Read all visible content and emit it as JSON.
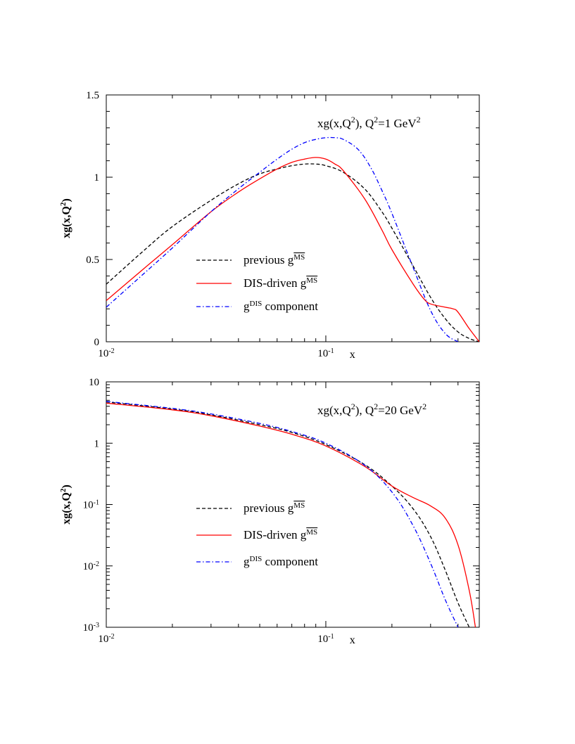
{
  "colors": {
    "previous": "#000000",
    "dis_driven": "#ff0000",
    "dis_component": "#0000ff"
  },
  "chart_data": [
    {
      "type": "line",
      "panel": "top",
      "xscale": "log",
      "yscale": "linear",
      "xlim": [
        0.01,
        0.5
      ],
      "ylim": [
        0,
        1.5
      ],
      "xlabel": "x",
      "ylabel": {
        "base": "xg(x,Q",
        "sup": "2",
        "close": ")"
      },
      "annotation": {
        "p1": "xg(x,Q",
        "s1": "2",
        "p2": "), Q",
        "s2": "2",
        "p3": "=1 GeV",
        "s3": "2"
      },
      "yticks": [
        {
          "v": 0,
          "label": "0"
        },
        {
          "v": 0.5,
          "label": "0.5"
        },
        {
          "v": 1,
          "label": "1"
        },
        {
          "v": 1.5,
          "label": "1.5"
        }
      ],
      "xticks": [
        {
          "v": 0.01,
          "base": "10",
          "exp": "-2"
        },
        {
          "v": 0.1,
          "base": "10",
          "exp": "-1"
        }
      ],
      "legend": [
        {
          "key": "previous",
          "style": "dashed",
          "text": "previous g",
          "sup": "MS"
        },
        {
          "key": "dis_driven",
          "style": "solid",
          "text": "DIS-driven g",
          "sup": "MS"
        },
        {
          "key": "dis_component",
          "style": "dashdot",
          "text": "g",
          "sup": "DIS",
          "after": " component"
        }
      ],
      "series": [
        {
          "name": "previous g MS",
          "key": "previous",
          "x": [
            0.01,
            0.015,
            0.02,
            0.03,
            0.04,
            0.05,
            0.06,
            0.07,
            0.08,
            0.09,
            0.1,
            0.12,
            0.15,
            0.18,
            0.2,
            0.25,
            0.3,
            0.35,
            0.4,
            0.45,
            0.5
          ],
          "y": [
            0.35,
            0.56,
            0.7,
            0.86,
            0.96,
            1.02,
            1.05,
            1.07,
            1.08,
            1.08,
            1.07,
            1.03,
            0.93,
            0.79,
            0.69,
            0.46,
            0.27,
            0.14,
            0.06,
            0.02,
            0.0
          ]
        },
        {
          "name": "DIS-driven g MS",
          "key": "dis_driven",
          "x": [
            0.01,
            0.015,
            0.02,
            0.03,
            0.04,
            0.05,
            0.06,
            0.07,
            0.08,
            0.09,
            0.1,
            0.11,
            0.12,
            0.15,
            0.18,
            0.2,
            0.25,
            0.28,
            0.3,
            0.35,
            0.38,
            0.4,
            0.45,
            0.5
          ],
          "y": [
            0.25,
            0.45,
            0.59,
            0.79,
            0.91,
            0.99,
            1.05,
            1.09,
            1.11,
            1.12,
            1.11,
            1.08,
            1.04,
            0.87,
            0.68,
            0.56,
            0.35,
            0.26,
            0.23,
            0.21,
            0.2,
            0.18,
            0.08,
            0.0
          ]
        },
        {
          "name": "g DIS component",
          "key": "dis_component",
          "x": [
            0.01,
            0.015,
            0.02,
            0.03,
            0.04,
            0.05,
            0.06,
            0.07,
            0.08,
            0.09,
            0.1,
            0.11,
            0.12,
            0.14,
            0.16,
            0.18,
            0.2,
            0.25,
            0.3,
            0.35,
            0.4
          ],
          "y": [
            0.21,
            0.42,
            0.57,
            0.79,
            0.93,
            1.03,
            1.11,
            1.17,
            1.21,
            1.23,
            1.24,
            1.24,
            1.23,
            1.17,
            1.06,
            0.92,
            0.78,
            0.45,
            0.19,
            0.05,
            0.0
          ]
        }
      ]
    },
    {
      "type": "line",
      "panel": "bottom",
      "xscale": "log",
      "yscale": "log",
      "xlim": [
        0.01,
        0.5
      ],
      "ylim": [
        0.001,
        10
      ],
      "xlabel": "x",
      "ylabel": {
        "base": "xg(x,Q",
        "sup": "2",
        "close": ")"
      },
      "annotation": {
        "p1": "xg(x,Q",
        "s1": "2",
        "p2": "), Q",
        "s2": "2",
        "p3": "=20 GeV",
        "s3": "2"
      },
      "yticks": [
        {
          "v": 10,
          "base": "10",
          "exp": ""
        },
        {
          "v": 1,
          "base": "1",
          "exp": ""
        },
        {
          "v": 0.1,
          "base": "10",
          "exp": "-1"
        },
        {
          "v": 0.01,
          "base": "10",
          "exp": "-2"
        },
        {
          "v": 0.001,
          "base": "10",
          "exp": "-3"
        }
      ],
      "xticks": [
        {
          "v": 0.01,
          "base": "10",
          "exp": "-2"
        },
        {
          "v": 0.1,
          "base": "10",
          "exp": "-1"
        }
      ],
      "legend": [
        {
          "key": "previous",
          "style": "dashed",
          "text": "previous g",
          "sup": "MS"
        },
        {
          "key": "dis_driven",
          "style": "solid",
          "text": "DIS-driven g",
          "sup": "MS"
        },
        {
          "key": "dis_component",
          "style": "dashdot",
          "text": "g",
          "sup": "DIS",
          "after": " component"
        }
      ],
      "series": [
        {
          "name": "previous g MS",
          "key": "previous",
          "x": [
            0.01,
            0.02,
            0.03,
            0.05,
            0.07,
            0.1,
            0.15,
            0.2,
            0.25,
            0.3,
            0.35,
            0.4,
            0.45
          ],
          "y": [
            4.7,
            3.6,
            2.9,
            2.0,
            1.5,
            0.95,
            0.45,
            0.2,
            0.085,
            0.03,
            0.0085,
            0.0025,
            0.001
          ]
        },
        {
          "name": "DIS-driven g MS",
          "key": "dis_driven",
          "x": [
            0.01,
            0.02,
            0.03,
            0.05,
            0.07,
            0.1,
            0.15,
            0.2,
            0.25,
            0.3,
            0.35,
            0.4,
            0.45,
            0.48
          ],
          "y": [
            4.5,
            3.5,
            2.8,
            1.9,
            1.4,
            0.9,
            0.42,
            0.2,
            0.13,
            0.095,
            0.06,
            0.022,
            0.004,
            0.001
          ]
        },
        {
          "name": "g DIS component",
          "key": "dis_component",
          "x": [
            0.01,
            0.02,
            0.03,
            0.05,
            0.07,
            0.1,
            0.15,
            0.2,
            0.25,
            0.3,
            0.35,
            0.4
          ],
          "y": [
            4.8,
            3.7,
            3.0,
            2.1,
            1.55,
            1.0,
            0.44,
            0.16,
            0.045,
            0.011,
            0.0028,
            0.001
          ]
        }
      ]
    }
  ]
}
